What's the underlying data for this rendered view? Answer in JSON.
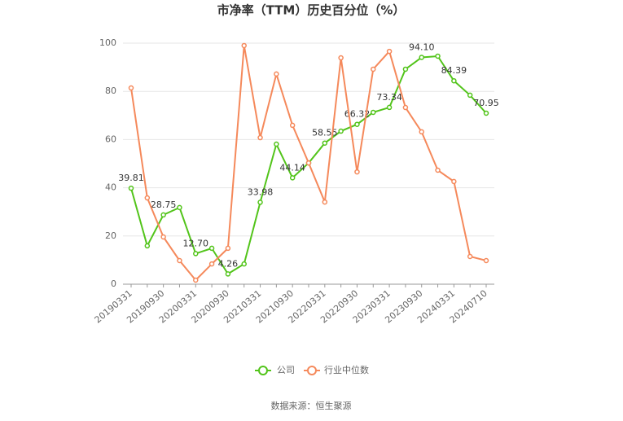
{
  "chart_data": {
    "type": "line",
    "title": "市净率（TTM）历史百分位（%）",
    "source": "数据来源：恒生聚源",
    "categories": [
      "20190331",
      null,
      "20190930",
      null,
      "20200331",
      null,
      "20200930",
      null,
      "20210331",
      null,
      "20210930",
      null,
      "20220331",
      null,
      "20220930",
      null,
      "20230331",
      null,
      "20230930",
      null,
      "20240331",
      null,
      "20240710"
    ],
    "series": [
      {
        "name": "公司",
        "color": "#52c41a",
        "values": [
          39.81,
          15.9,
          28.75,
          31.8,
          12.7,
          14.9,
          4.26,
          8.4,
          33.98,
          58.1,
          44.14,
          50.3,
          58.55,
          63.5,
          66.32,
          71.3,
          73.34,
          89.2,
          94.1,
          94.6,
          84.39,
          78.4,
          70.95
        ],
        "value_labels": [
          "39.81",
          null,
          "28.75",
          null,
          "12.70",
          null,
          "4.26",
          null,
          "33.98",
          null,
          "44.14",
          null,
          "58.55",
          null,
          "66.32",
          null,
          "73.34",
          null,
          "94.10",
          null,
          "84.39",
          null,
          "70.95"
        ]
      },
      {
        "name": "行业中位数",
        "color": "#f5895b",
        "values": [
          81.4,
          35.8,
          19.6,
          9.8,
          1.7,
          8.4,
          14.9,
          99.0,
          60.8,
          87.2,
          65.9,
          50.3,
          34.1,
          93.9,
          46.6,
          89.2,
          96.6,
          73.3,
          63.2,
          47.3,
          42.6,
          11.5,
          9.8
        ]
      }
    ],
    "ylim": [
      0,
      100
    ],
    "yticks": [
      0,
      20,
      40,
      60,
      80,
      100
    ],
    "grid": true,
    "legend": "bottom"
  }
}
